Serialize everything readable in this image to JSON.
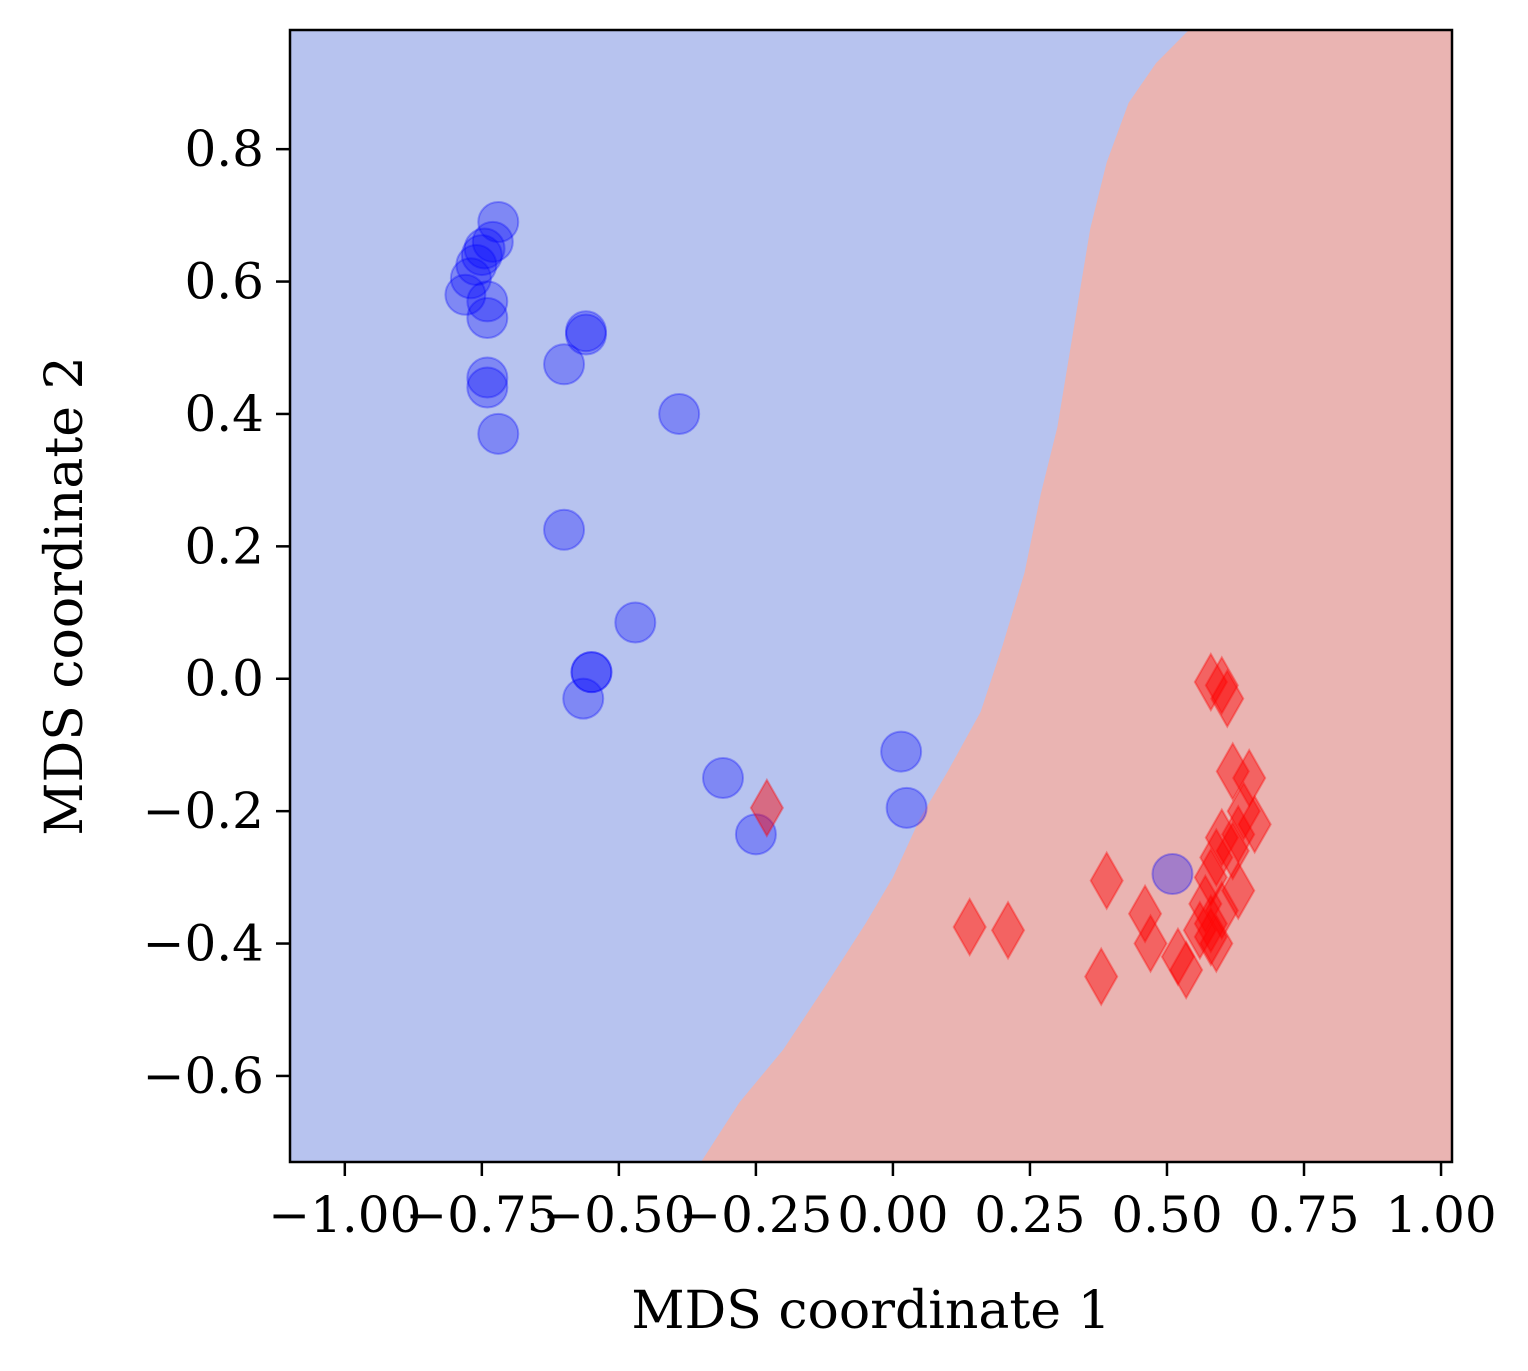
{
  "chart_data": {
    "type": "scatter",
    "title": "",
    "xlabel": "MDS coordinate 1",
    "ylabel": "MDS coordinate 2",
    "xlim": [
      -1.1,
      1.02
    ],
    "ylim": [
      -0.73,
      0.98
    ],
    "xticks": [
      -1.0,
      -0.75,
      -0.5,
      -0.25,
      0.0,
      0.25,
      0.5,
      0.75,
      1.0
    ],
    "xtick_labels": [
      "−1.00",
      "−0.75",
      "−0.50",
      "−0.25",
      "0.00",
      "0.25",
      "0.50",
      "0.75",
      "1.00"
    ],
    "yticks": [
      -0.6,
      -0.4,
      -0.2,
      0.0,
      0.2,
      0.4,
      0.6,
      0.8
    ],
    "ytick_labels": [
      "−0.6",
      "−0.4",
      "−0.2",
      "0.0",
      "0.2",
      "0.4",
      "0.6",
      "0.8"
    ],
    "grid": false,
    "regions": {
      "class_0_color": "#b7c3ef",
      "class_1_color": "#eab4b2",
      "boundary": [
        [
          -0.35,
          -0.73
        ],
        [
          -0.28,
          -0.64
        ],
        [
          -0.2,
          -0.56
        ],
        [
          -0.12,
          -0.46
        ],
        [
          -0.05,
          -0.37
        ],
        [
          0.0,
          -0.3
        ],
        [
          0.05,
          -0.21
        ],
        [
          0.1,
          -0.14
        ],
        [
          0.16,
          -0.05
        ],
        [
          0.2,
          0.05
        ],
        [
          0.24,
          0.16
        ],
        [
          0.27,
          0.28
        ],
        [
          0.3,
          0.38
        ],
        [
          0.32,
          0.48
        ],
        [
          0.34,
          0.58
        ],
        [
          0.36,
          0.68
        ],
        [
          0.39,
          0.78
        ],
        [
          0.43,
          0.87
        ],
        [
          0.48,
          0.93
        ],
        [
          0.54,
          0.98
        ]
      ]
    },
    "series": [
      {
        "marker": "circle",
        "color": "#0000ff",
        "points": [
          [
            -0.72,
            0.69
          ],
          [
            -0.73,
            0.66
          ],
          [
            -0.745,
            0.65
          ],
          [
            -0.75,
            0.64
          ],
          [
            -0.76,
            0.625
          ],
          [
            -0.77,
            0.605
          ],
          [
            -0.78,
            0.58
          ],
          [
            -0.74,
            0.57
          ],
          [
            -0.74,
            0.545
          ],
          [
            -0.56,
            0.525
          ],
          [
            -0.56,
            0.52
          ],
          [
            -0.6,
            0.475
          ],
          [
            -0.74,
            0.455
          ],
          [
            -0.74,
            0.44
          ],
          [
            -0.72,
            0.37
          ],
          [
            -0.39,
            0.4
          ],
          [
            -0.6,
            0.225
          ],
          [
            -0.47,
            0.085
          ],
          [
            -0.55,
            0.01
          ],
          [
            -0.55,
            0.01
          ],
          [
            -0.565,
            -0.03
          ],
          [
            -0.31,
            -0.15
          ],
          [
            -0.25,
            -0.235
          ],
          [
            0.015,
            -0.11
          ],
          [
            0.025,
            -0.195
          ],
          [
            0.51,
            -0.295
          ]
        ]
      },
      {
        "marker": "diamond",
        "color": "#ff0000",
        "points": [
          [
            -0.23,
            -0.195
          ],
          [
            0.58,
            -0.005
          ],
          [
            0.6,
            -0.01
          ],
          [
            0.61,
            -0.03
          ],
          [
            0.62,
            -0.14
          ],
          [
            0.65,
            -0.15
          ],
          [
            0.64,
            -0.2
          ],
          [
            0.66,
            -0.22
          ],
          [
            0.6,
            -0.24
          ],
          [
            0.63,
            -0.235
          ],
          [
            0.59,
            -0.27
          ],
          [
            0.62,
            -0.26
          ],
          [
            0.58,
            -0.3
          ],
          [
            0.63,
            -0.32
          ],
          [
            0.57,
            -0.34
          ],
          [
            0.6,
            -0.35
          ],
          [
            0.58,
            -0.37
          ],
          [
            0.56,
            -0.38
          ],
          [
            0.58,
            -0.39
          ],
          [
            0.59,
            -0.4
          ],
          [
            0.39,
            -0.305
          ],
          [
            0.46,
            -0.355
          ],
          [
            0.47,
            -0.4
          ],
          [
            0.52,
            -0.42
          ],
          [
            0.535,
            -0.44
          ],
          [
            0.38,
            -0.45
          ],
          [
            0.14,
            -0.375
          ],
          [
            0.21,
            -0.38
          ]
        ]
      }
    ]
  }
}
